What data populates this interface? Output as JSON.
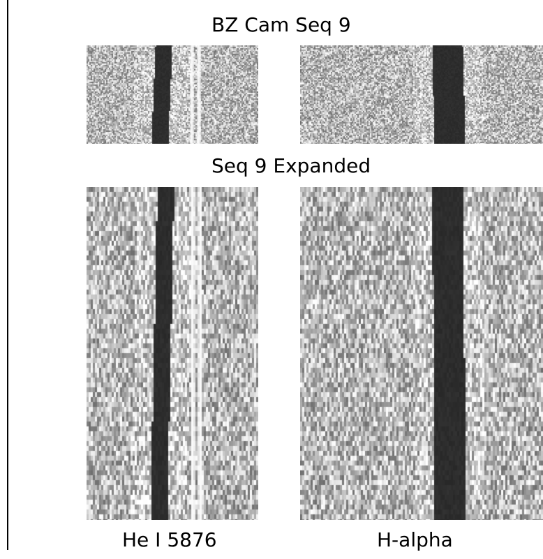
{
  "figure": {
    "title": "BZ Cam  Seq 9",
    "subtitle": "Seq 9 Expanded",
    "columns": [
      {
        "label": "He I 5876"
      },
      {
        "label": "H-alpha"
      }
    ]
  }
}
